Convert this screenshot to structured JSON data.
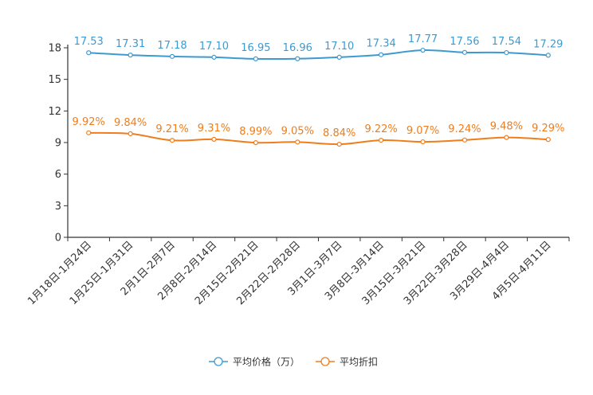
{
  "chart_data": {
    "type": "line",
    "categories": [
      "1月18日-1月24日",
      "1月25日-1月31日",
      "2月1日-2月7日",
      "2月8日-2月14日",
      "2月15日-2月21日",
      "2月22日-2月28日",
      "3月1日-3月7日",
      "3月8日-3月14日",
      "3月15日-3月21日",
      "3月22日-3月28日",
      "3月29日-4月4日",
      "4月5日-4月11日"
    ],
    "series": [
      {
        "name": "平均价格（万）",
        "color": "#3d9ad1",
        "values": [
          17.53,
          17.31,
          17.18,
          17.1,
          16.95,
          16.96,
          17.1,
          17.34,
          17.77,
          17.56,
          17.54,
          17.29
        ],
        "labels": [
          "17.53",
          "17.31",
          "17.18",
          "17.10",
          "16.95",
          "16.96",
          "17.10",
          "17.34",
          "17.77",
          "17.56",
          "17.54",
          "17.29"
        ]
      },
      {
        "name": "平均折扣",
        "color": "#f07d1c",
        "values": [
          9.92,
          9.84,
          9.21,
          9.31,
          8.99,
          9.05,
          8.84,
          9.22,
          9.07,
          9.24,
          9.48,
          9.29
        ],
        "labels": [
          "9.92%",
          "9.84%",
          "9.21%",
          "9.31%",
          "8.99%",
          "9.05%",
          "8.84%",
          "9.22%",
          "9.07%",
          "9.24%",
          "9.48%",
          "9.29%"
        ]
      }
    ],
    "ylim": [
      0,
      18
    ],
    "yticks": [
      0,
      3,
      6,
      9,
      12,
      15,
      18
    ],
    "ytick_labels": [
      "0",
      "3",
      "6",
      "9",
      "12",
      "15",
      "18"
    ],
    "legend_position": "bottom-center",
    "grid": false
  }
}
